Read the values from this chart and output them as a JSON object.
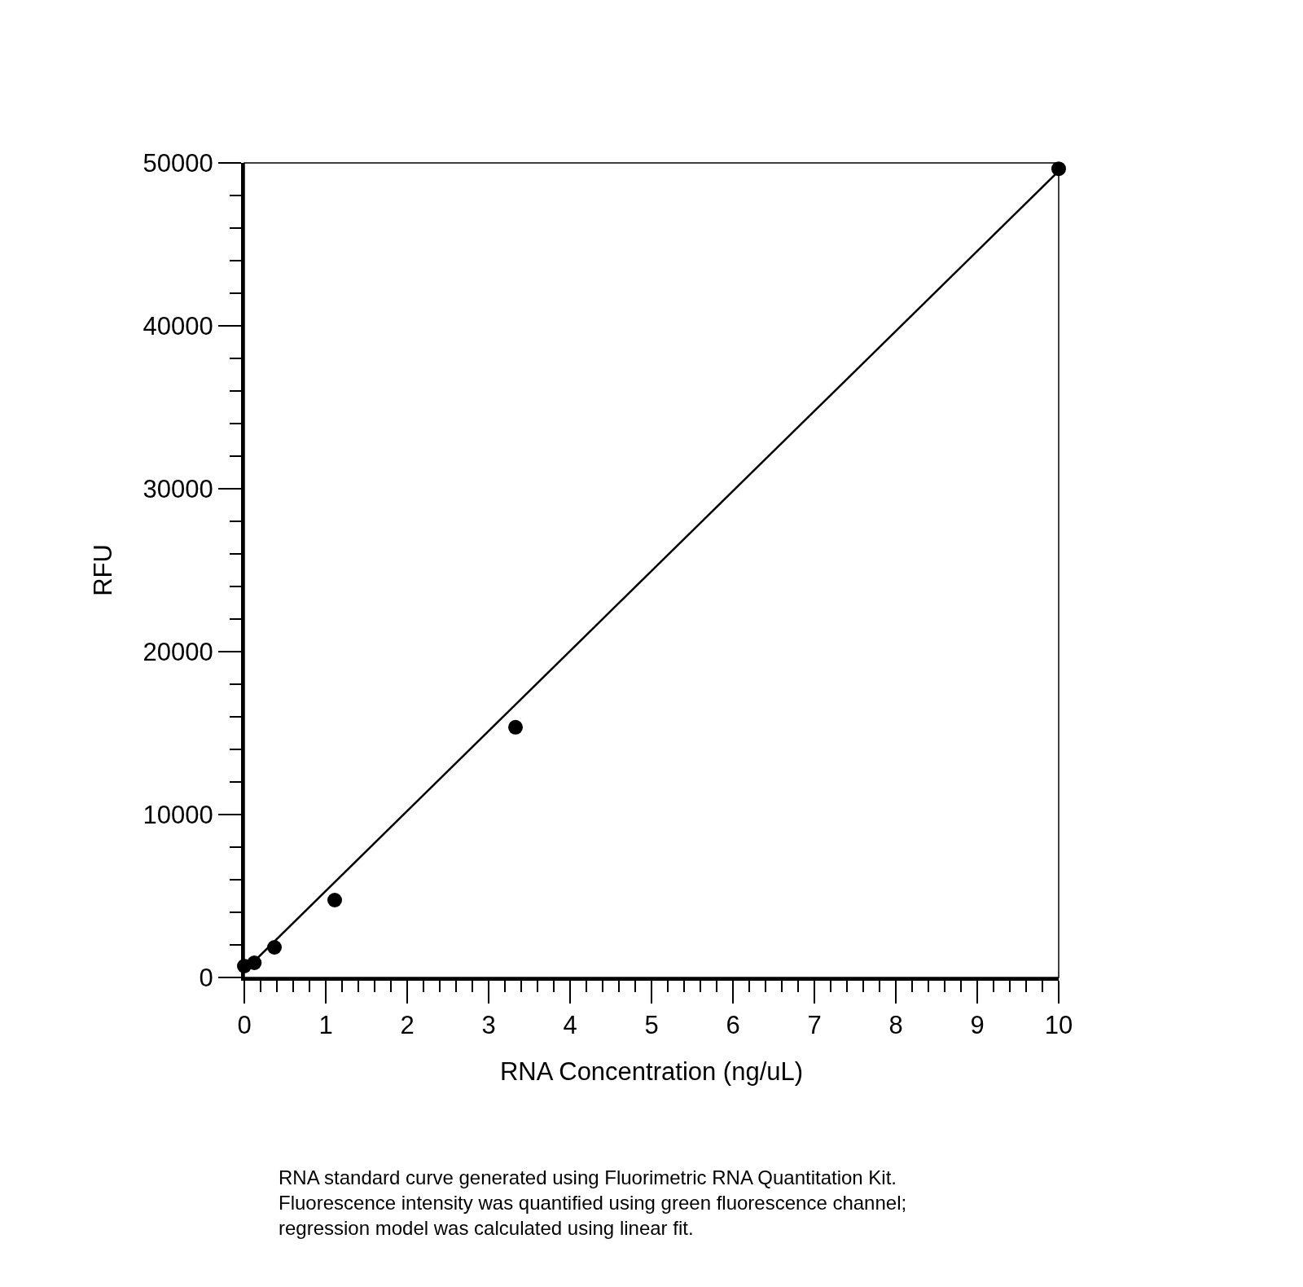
{
  "chart_data": {
    "type": "scatter",
    "xlabel": "RNA Concentration (ng/uL)",
    "ylabel": "RFU",
    "x": [
      0,
      0.123,
      0.37,
      1.11,
      3.33,
      10
    ],
    "series": [
      {
        "type": "scatter",
        "color": "#000000",
        "values": [
          700,
          900,
          1850,
          4750,
          15360,
          49640
        ]
      },
      {
        "type": "line",
        "color": "#000000",
        "x": [
          0,
          10
        ],
        "values": [
          400,
          49500
        ],
        "marker": "none"
      }
    ],
    "marker": "circle",
    "grid": false,
    "xlim": [
      0,
      10
    ],
    "ylim": [
      0,
      50000
    ],
    "xticks": [
      0,
      1,
      2,
      3,
      4,
      5,
      6,
      7,
      8,
      9,
      10,
      {
        "value": 0.2,
        "label": null
      },
      {
        "value": 0.4,
        "label": null
      },
      {
        "value": 0.6,
        "label": null
      },
      {
        "value": 0.8,
        "label": null
      },
      {
        "value": 1.2,
        "label": null
      },
      {
        "value": 1.4,
        "label": null
      },
      {
        "value": 1.6,
        "label": null
      },
      {
        "value": 1.8,
        "label": null
      },
      {
        "value": 2.2,
        "label": null
      },
      {
        "value": 2.4,
        "label": null
      },
      {
        "value": 2.6,
        "label": null
      },
      {
        "value": 2.8,
        "label": null
      },
      {
        "value": 3.2,
        "label": null
      },
      {
        "value": 3.4,
        "label": null
      },
      {
        "value": 3.6,
        "label": null
      },
      {
        "value": 3.8,
        "label": null
      },
      {
        "value": 4.2,
        "label": null
      },
      {
        "value": 4.4,
        "label": null
      },
      {
        "value": 4.6,
        "label": null
      },
      {
        "value": 4.8,
        "label": null
      },
      {
        "value": 5.2,
        "label": null
      },
      {
        "value": 5.4,
        "label": null
      },
      {
        "value": 5.6,
        "label": null
      },
      {
        "value": 5.8,
        "label": null
      },
      {
        "value": 6.2,
        "label": null
      },
      {
        "value": 6.4,
        "label": null
      },
      {
        "value": 6.6,
        "label": null
      },
      {
        "value": 6.8,
        "label": null
      },
      {
        "value": 7.2,
        "label": null
      },
      {
        "value": 7.4,
        "label": null
      },
      {
        "value": 7.6,
        "label": null
      },
      {
        "value": 7.8,
        "label": null
      },
      {
        "value": 8.2,
        "label": null
      },
      {
        "value": 8.4,
        "label": null
      },
      {
        "value": 8.6,
        "label": null
      },
      {
        "value": 8.8,
        "label": null
      },
      {
        "value": 9.2,
        "label": null
      },
      {
        "value": 9.4,
        "label": null
      },
      {
        "value": 9.6,
        "label": null
      },
      {
        "value": 9.8,
        "label": null
      }
    ],
    "yticks": [
      0,
      10000,
      20000,
      30000,
      40000,
      50000,
      {
        "value": 2000,
        "label": null
      },
      {
        "value": 4000,
        "label": null
      },
      {
        "value": 6000,
        "label": null
      },
      {
        "value": 8000,
        "label": null
      },
      {
        "value": 12000,
        "label": null
      },
      {
        "value": 14000,
        "label": null
      },
      {
        "value": 16000,
        "label": null
      },
      {
        "value": 18000,
        "label": null
      },
      {
        "value": 22000,
        "label": null
      },
      {
        "value": 24000,
        "label": null
      },
      {
        "value": 26000,
        "label": null
      },
      {
        "value": 28000,
        "label": null
      },
      {
        "value": 32000,
        "label": null
      },
      {
        "value": 34000,
        "label": null
      },
      {
        "value": 36000,
        "label": null
      },
      {
        "value": 38000,
        "label": null
      },
      {
        "value": 42000,
        "label": null
      },
      {
        "value": 44000,
        "label": null
      },
      {
        "value": 46000,
        "label": null
      },
      {
        "value": 48000,
        "label": null
      }
    ],
    "annotations": [
      "RNA standard curve generated using Fluorimetric RNA Quantitation Kit. Fluorescence intensity was quantified using green fluorescence channel; regression model was calculated using linear fit."
    ]
  }
}
